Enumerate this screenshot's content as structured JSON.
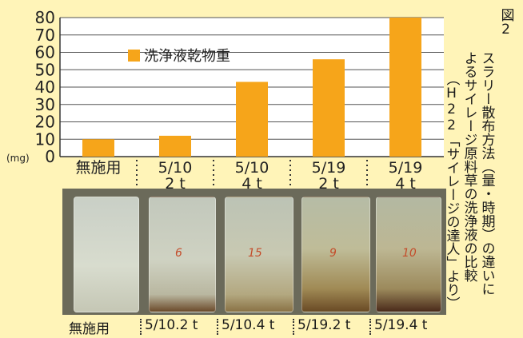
{
  "chart_data": {
    "type": "bar",
    "categories": [
      [
        "無施用"
      ],
      [
        "5/10",
        "2 t"
      ],
      [
        "5/10",
        "4 t"
      ],
      [
        "5/19",
        "2 t"
      ],
      [
        "5/19",
        "4 t"
      ]
    ],
    "series": [
      {
        "name": "洗浄液乾物重",
        "values": [
          10,
          12,
          43,
          56,
          80
        ]
      }
    ],
    "yunit": "(mg)",
    "yticks": [
      0,
      10,
      20,
      30,
      40,
      50,
      60,
      70,
      80
    ],
    "ylim": [
      0,
      80
    ],
    "grid": true,
    "legend": "top-left",
    "bar_color": "#f6a51a"
  },
  "figure": {
    "number": "図2",
    "title_line1": "スラリー散布方法（量・時期）の違いに",
    "title_line2": "よるサイレージ原料草の洗浄液の比較",
    "title_line3": "（H22「サイレージの達人」より）"
  },
  "photo": {
    "captions": [
      "無施用",
      "5/10.2 t",
      "5/10.4 t",
      "5/19.2 t",
      "5/19.4 t"
    ],
    "glass_labels": [
      "",
      "6",
      "15",
      "9",
      "10"
    ]
  }
}
